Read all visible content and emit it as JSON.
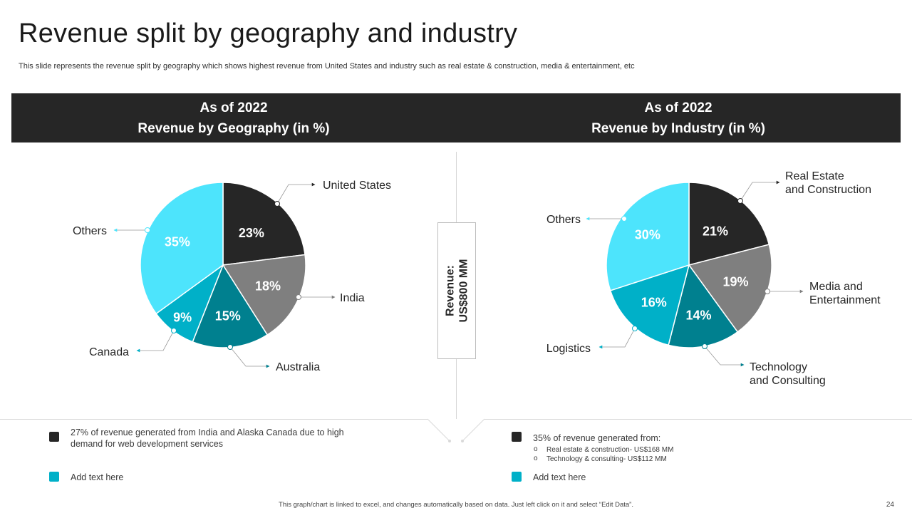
{
  "slide": {
    "title": "Revenue split by geography and industry",
    "subtitle": "This slide represents the revenue split by geography which shows highest revenue from United States and industry such as real estate & construction, media & entertainment, etc",
    "page_number": "24",
    "footer": "This graph/chart is linked to excel, and changes automatically based on data. Just left click on it and select “Edit Data”."
  },
  "center_label": {
    "line1": "Revenue:",
    "line2": "US$800 MM"
  },
  "chart_data": [
    {
      "type": "pie",
      "title_line1": "As of 2022",
      "title_line2": "Revenue by Geography (in %)",
      "slices": [
        {
          "name": "United States",
          "value": 23,
          "label": "23%",
          "color": "#262626"
        },
        {
          "name": "India",
          "value": 18,
          "label": "18%",
          "color": "#7f7f7f"
        },
        {
          "name": "Australia",
          "value": 15,
          "label": "15%",
          "color": "#00808f"
        },
        {
          "name": "Canada",
          "value": 9,
          "label": "9%",
          "color": "#00b0c8"
        },
        {
          "name": "Others",
          "value": 35,
          "label": "35%",
          "color": "#4de4fc"
        }
      ]
    },
    {
      "type": "pie",
      "title_line1": "As of 2022",
      "title_line2": "Revenue by Industry (in %)",
      "slices": [
        {
          "name": "Real Estate and Construction",
          "value": 21,
          "label": "21%",
          "color": "#262626"
        },
        {
          "name": "Media and Entertainment",
          "value": 19,
          "label": "19%",
          "color": "#7f7f7f"
        },
        {
          "name": "Technology and Consulting",
          "value": 14,
          "label": "14%",
          "color": "#00808f"
        },
        {
          "name": "Logistics",
          "value": 16,
          "label": "16%",
          "color": "#00b0c8"
        },
        {
          "name": "Others",
          "value": 30,
          "label": "30%",
          "color": "#4de4fc"
        }
      ]
    }
  ],
  "callouts": {
    "geo": {
      "us": "United States",
      "india": "India",
      "australia": "Australia",
      "canada": "Canada",
      "others": "Others"
    },
    "ind": {
      "realestate_1": "Real Estate",
      "realestate_2": "and Construction",
      "media_1": "Media and",
      "media_2": "Entertainment",
      "tech_1": "Technology",
      "tech_2": "and Consulting",
      "logistics": "Logistics",
      "others": "Others"
    }
  },
  "notes": {
    "left": {
      "text1": "27% of revenue  generated from India and Alaska Canada due to high demand for web development  services",
      "text2": "Add text here",
      "color1": "#262626",
      "color2": "#00b0c8"
    },
    "right": {
      "text1": "35% of revenue  generated from:",
      "sub1": "Real estate & construction- US$168 MM",
      "sub2": "Technology & consulting- US$112 MM",
      "text2": "Add text here",
      "color1": "#262626",
      "color2": "#00b0c8"
    }
  }
}
